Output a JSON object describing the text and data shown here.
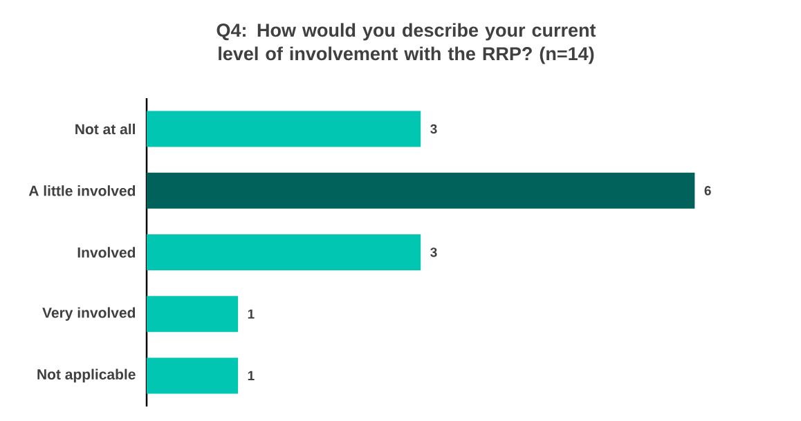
{
  "chart_data": {
    "type": "bar",
    "orientation": "horizontal",
    "title": "Q4: How would you describe your current level of involvement with the RRP? (n=14)",
    "categories": [
      "Not at all",
      "A little involved",
      "Involved",
      "Very involved",
      "Not applicable"
    ],
    "values": [
      3,
      6,
      3,
      1,
      1
    ],
    "colors": [
      "#00c6b2",
      "#00625a",
      "#00c6b2",
      "#00c6b2",
      "#00c6b2"
    ],
    "data_labels": true
  }
}
